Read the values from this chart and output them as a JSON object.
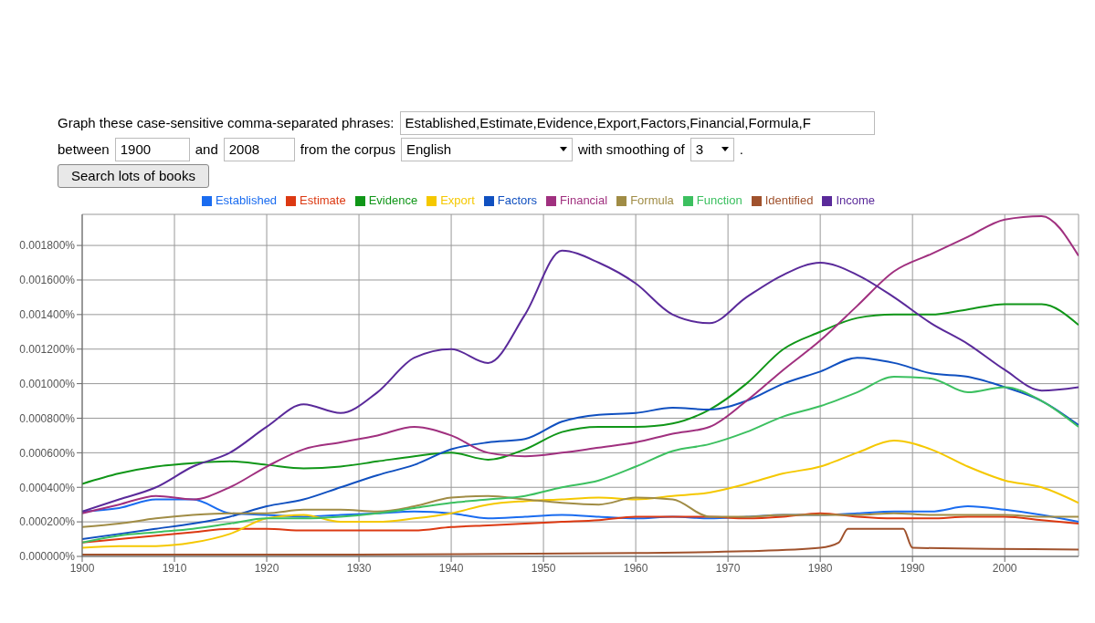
{
  "chart_data": {
    "type": "line",
    "annotations": [
      "Graph these case-sensitive comma-separated phrases:",
      "Established,Estimate,Evidence,Export,Factors,Financial,Formula,F",
      "between",
      "1900",
      "and",
      "2008",
      "from the corpus",
      "English",
      "with smoothing of",
      "3",
      ".",
      "Search lots of books"
    ],
    "x": [
      1900,
      1904,
      1908,
      1912,
      1916,
      1920,
      1924,
      1928,
      1932,
      1936,
      1940,
      1944,
      1948,
      1952,
      1956,
      1960,
      1964,
      1968,
      1972,
      1976,
      1980,
      1984,
      1988,
      1992,
      1996,
      2000,
      2004,
      2008
    ],
    "series": [
      {
        "name": "Established",
        "color": "#1a6cf0",
        "values": [
          0.00026,
          0.00028,
          0.00033,
          0.00033,
          0.00025,
          0.00024,
          0.00023,
          0.00024,
          0.00025,
          0.00026,
          0.00025,
          0.00022,
          0.00023,
          0.00024,
          0.00023,
          0.00022,
          0.00023,
          0.00022,
          0.00023,
          0.00024,
          0.00024,
          0.00025,
          0.00026,
          0.00026,
          0.00029,
          0.00027,
          0.00024,
          0.0002
        ]
      },
      {
        "name": "Estimate",
        "color": "#dc3912",
        "values": [
          8e-05,
          0.0001,
          0.00012,
          0.00014,
          0.00016,
          0.00016,
          0.00015,
          0.00015,
          0.00015,
          0.00015,
          0.00017,
          0.00018,
          0.00019,
          0.0002,
          0.00021,
          0.00023,
          0.00023,
          0.00023,
          0.00022,
          0.00023,
          0.00025,
          0.00023,
          0.00022,
          0.00022,
          0.00023,
          0.00023,
          0.00021,
          0.00019
        ]
      },
      {
        "name": "Evidence",
        "color": "#109618",
        "values": [
          0.00042,
          0.00048,
          0.00052,
          0.00054,
          0.00055,
          0.00053,
          0.00051,
          0.00052,
          0.00055,
          0.00058,
          0.0006,
          0.00056,
          0.00062,
          0.00072,
          0.00075,
          0.00075,
          0.00077,
          0.00085,
          0.001,
          0.0012,
          0.0013,
          0.00138,
          0.0014,
          0.0014,
          0.00143,
          0.00146,
          0.00146,
          0.00134
        ]
      },
      {
        "name": "Export",
        "color": "#f5c800",
        "values": [
          5e-05,
          6e-05,
          6e-05,
          8e-05,
          0.00013,
          0.00022,
          0.00024,
          0.0002,
          0.0002,
          0.00022,
          0.00025,
          0.0003,
          0.00032,
          0.00033,
          0.00034,
          0.00033,
          0.00035,
          0.00037,
          0.00042,
          0.00048,
          0.00052,
          0.0006,
          0.00067,
          0.00062,
          0.00052,
          0.00044,
          0.0004,
          0.00031
        ]
      },
      {
        "name": "Factors",
        "color": "#1050c0",
        "values": [
          0.0001,
          0.00013,
          0.00016,
          0.00019,
          0.00023,
          0.00029,
          0.00033,
          0.0004,
          0.00047,
          0.00053,
          0.00062,
          0.00066,
          0.00068,
          0.00078,
          0.00082,
          0.00083,
          0.00086,
          0.00085,
          0.0009,
          0.001,
          0.00107,
          0.00115,
          0.00112,
          0.00106,
          0.00104,
          0.00098,
          0.0009,
          0.00076
        ]
      },
      {
        "name": "Financial",
        "color": "#a0307f",
        "values": [
          0.00025,
          0.0003,
          0.00035,
          0.00033,
          0.0004,
          0.00052,
          0.00062,
          0.00066,
          0.0007,
          0.00075,
          0.0007,
          0.0006,
          0.00058,
          0.0006,
          0.00063,
          0.00066,
          0.00071,
          0.00075,
          0.0009,
          0.00108,
          0.00125,
          0.00145,
          0.00165,
          0.00175,
          0.00185,
          0.00195,
          0.00197,
          0.00174
        ]
      },
      {
        "name": "Formula",
        "color": "#a08c45",
        "values": [
          0.00017,
          0.00019,
          0.00022,
          0.00024,
          0.00025,
          0.00025,
          0.00027,
          0.00027,
          0.00026,
          0.00029,
          0.00034,
          0.00035,
          0.00033,
          0.00031,
          0.0003,
          0.00034,
          0.00033,
          0.00023,
          0.00023,
          0.00024,
          0.00024,
          0.00024,
          0.00025,
          0.00024,
          0.00024,
          0.00024,
          0.00023,
          0.00023
        ]
      },
      {
        "name": "Function",
        "color": "#3cc060",
        "values": [
          8e-05,
          0.00012,
          0.00014,
          0.00016,
          0.00019,
          0.00022,
          0.00022,
          0.00023,
          0.00025,
          0.00028,
          0.00031,
          0.00033,
          0.00035,
          0.0004,
          0.00044,
          0.00052,
          0.00061,
          0.00065,
          0.00072,
          0.00081,
          0.00087,
          0.00095,
          0.00104,
          0.00103,
          0.00095,
          0.00098,
          0.0009,
          0.00075
        ]
      },
      {
        "name": "Identified",
        "color": "#a0522d",
        "x": [
          1900,
          1930,
          1960,
          1972,
          1980,
          1982,
          1983,
          1989,
          1990,
          2008
        ],
        "values": [
          1e-05,
          1e-05,
          2e-05,
          3e-05,
          5e-05,
          8e-05,
          0.00016,
          0.00016,
          5e-05,
          4e-05
        ]
      },
      {
        "name": "Income",
        "color": "#5a2a9a",
        "values": [
          0.00026,
          0.00033,
          0.0004,
          0.00052,
          0.0006,
          0.00075,
          0.00088,
          0.00083,
          0.00095,
          0.00115,
          0.0012,
          0.00112,
          0.0014,
          0.00177,
          0.0017,
          0.00158,
          0.0014,
          0.00135,
          0.0015,
          0.00163,
          0.0017,
          0.00163,
          0.0015,
          0.00135,
          0.00123,
          0.00108,
          0.00096,
          0.00098
        ]
      }
    ],
    "xlim": [
      1900,
      2008
    ],
    "xticks": [
      1900,
      1910,
      1920,
      1930,
      1940,
      1950,
      1960,
      1970,
      1980,
      1990,
      2000
    ],
    "ylim": [
      0,
      0.00198
    ],
    "yticks": [
      {
        "value": 0,
        "label": "0.000000%"
      },
      {
        "value": 0.0002,
        "label": "0.000200%"
      },
      {
        "value": 0.0004,
        "label": "0.000400%"
      },
      {
        "value": 0.0006,
        "label": "0.000600%"
      },
      {
        "value": 0.0008,
        "label": "0.000800%"
      },
      {
        "value": 0.001,
        "label": "0.001000%"
      },
      {
        "value": 0.0012,
        "label": "0.001200%"
      },
      {
        "value": 0.0014,
        "label": "0.001400%"
      },
      {
        "value": 0.0016,
        "label": "0.001600%"
      },
      {
        "value": 0.0018,
        "label": "0.001800%"
      }
    ],
    "grid": true,
    "legend": "top",
    "marker": "none",
    "line_style": "solid"
  }
}
